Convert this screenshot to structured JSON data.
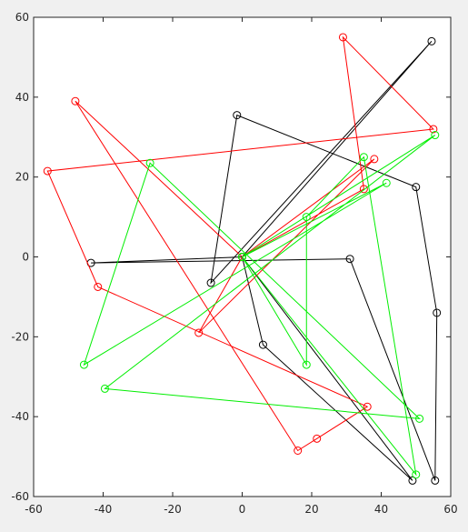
{
  "chart_data": {
    "type": "line",
    "xlim": [
      -60,
      60
    ],
    "ylim": [
      -60,
      60
    ],
    "xticks": [
      -60,
      -40,
      -20,
      0,
      20,
      40,
      60
    ],
    "yticks": [
      -60,
      -40,
      -20,
      0,
      20,
      40,
      60
    ],
    "grid": false,
    "legend": "none",
    "marker": "circle",
    "series": [
      {
        "color": "#000000",
        "points": [
          [
            0,
            0
          ],
          [
            54.5,
            54
          ],
          [
            -9,
            -6.5
          ],
          [
            -1.5,
            35.5
          ],
          [
            50,
            17.5
          ],
          [
            56,
            -14
          ],
          [
            55.5,
            -56
          ],
          [
            31,
            -0.5
          ],
          [
            -43.5,
            -1.5
          ],
          [
            0,
            0
          ],
          [
            6,
            -22
          ],
          [
            49,
            -56
          ],
          [
            0,
            0
          ]
        ]
      },
      {
        "color": "#ff0000",
        "points": [
          [
            0,
            0
          ],
          [
            35,
            17
          ],
          [
            29,
            55
          ],
          [
            55,
            32
          ],
          [
            -56,
            21.5
          ],
          [
            -41.5,
            -7.5
          ],
          [
            36,
            -37.5
          ],
          [
            21.5,
            -45.5
          ],
          [
            16,
            -48.5
          ],
          [
            -48,
            39
          ],
          [
            0,
            0
          ],
          [
            38,
            24.5
          ],
          [
            -12.5,
            -19
          ],
          [
            0,
            0
          ]
        ]
      },
      {
        "color": "#00ee00",
        "points": [
          [
            0,
            0
          ],
          [
            55.5,
            30.5
          ],
          [
            -39.5,
            -33
          ],
          [
            51,
            -40.5
          ],
          [
            -26.5,
            23.5
          ],
          [
            -45.5,
            -27
          ],
          [
            41.5,
            18.5
          ],
          [
            0,
            0
          ],
          [
            18.5,
            -27
          ],
          [
            18.5,
            10
          ],
          [
            35,
            25
          ],
          [
            50,
            -54.5
          ],
          [
            0,
            0
          ]
        ]
      }
    ]
  }
}
